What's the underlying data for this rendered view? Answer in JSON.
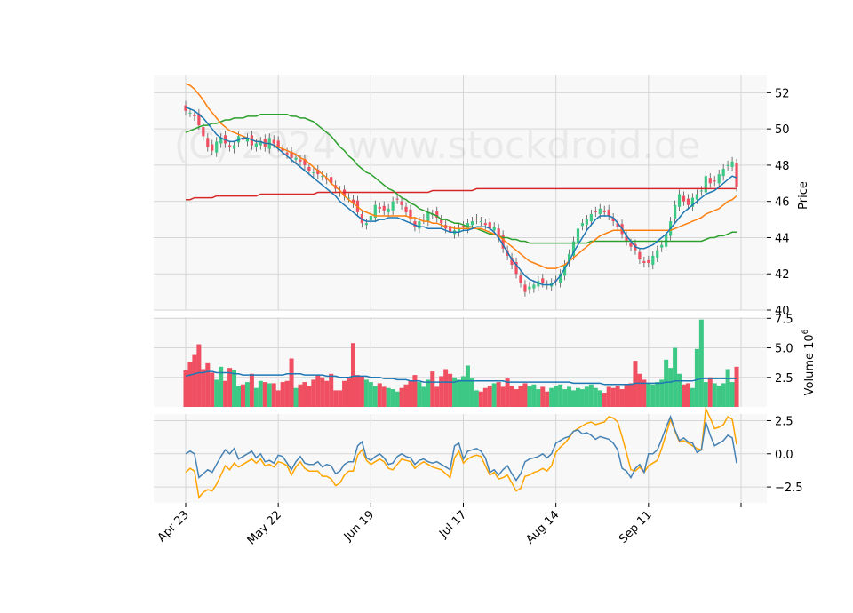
{
  "chart_data": {
    "type": "candlestick",
    "watermark": "(C) 2024 www.stockdroid.de",
    "colors": {
      "up": "#3dc985",
      "down": "#ef4f60",
      "ma_short": "#1f77b4",
      "ma_mid": "#ff7f0e",
      "ma_long": "#2ca02c",
      "ma_200": "#d62728",
      "indicator_1": "#4682b4",
      "indicator_2": "#ffa500",
      "panel_bg": "#f8f8f8",
      "grid": "#d6d6d6"
    },
    "x_ticks": [
      {
        "label": "Apr 23",
        "index": 0
      },
      {
        "label": "May 22",
        "index": 21
      },
      {
        "label": "Jun 19",
        "index": 42
      },
      {
        "label": "Jul 17",
        "index": 63
      },
      {
        "label": "Aug 14",
        "index": 84
      },
      {
        "label": "Sep 11",
        "index": 105
      },
      {
        "label": "",
        "index": 126
      }
    ],
    "price_panel": {
      "ylabel": "Price",
      "ylim": [
        40,
        53
      ],
      "yticks": [
        "40",
        "42",
        "44",
        "46",
        "48",
        "50",
        "52"
      ],
      "grid": true
    },
    "volume_panel": {
      "ylabel": "Volume  10",
      "ylabel_exponent": "6",
      "ylim": [
        0,
        7.6
      ],
      "yticks": [
        "2.5",
        "5.0",
        "7.5"
      ],
      "grid": true
    },
    "indicator_panel": {
      "ylim": [
        -3.7,
        3.0
      ],
      "yticks": [
        "2.5",
        "0.0",
        "−2.5"
      ],
      "grid": true
    },
    "close": [
      51.0,
      50.9,
      50.7,
      50.2,
      49.6,
      49.0,
      48.8,
      49.3,
      49.5,
      49.2,
      49.0,
      49.1,
      49.6,
      49.4,
      49.5,
      49.1,
      49.2,
      49.3,
      49.0,
      49.5,
      49.2,
      49.0,
      48.8,
      48.6,
      48.4,
      48.4,
      48.2,
      48.0,
      47.7,
      47.6,
      47.5,
      47.4,
      47.2,
      47.0,
      46.7,
      46.5,
      46.3,
      46.2,
      45.9,
      45.4,
      44.8,
      44.8,
      45.2,
      45.8,
      45.6,
      45.5,
      45.6,
      46.0,
      46.1,
      45.8,
      45.4,
      45.0,
      44.6,
      44.9,
      45.0,
      45.4,
      45.3,
      45.1,
      44.8,
      44.5,
      44.3,
      44.4,
      44.5,
      44.6,
      44.8,
      44.9,
      45.0,
      44.9,
      44.7,
      44.5,
      44.6,
      44.0,
      43.4,
      43.0,
      42.5,
      42.0,
      41.5,
      41.0,
      41.3,
      41.4,
      41.6,
      41.5,
      41.4,
      41.5,
      41.6,
      42.0,
      42.5,
      43.1,
      43.8,
      44.5,
      44.8,
      45.0,
      45.3,
      45.4,
      45.6,
      45.4,
      45.2,
      44.9,
      44.6,
      44.2,
      43.8,
      43.5,
      43.3,
      42.8,
      42.6,
      42.6,
      43.0,
      43.3,
      43.6,
      44.2,
      44.9,
      45.8,
      46.4,
      46.0,
      45.8,
      46.2,
      46.4,
      46.6,
      47.4,
      47.0,
      47.1,
      47.5,
      47.8,
      48.0,
      48.2,
      46.8
    ],
    "ma_short": [
      51.2,
      51.1,
      51.0,
      50.8,
      50.6,
      50.3,
      50.0,
      49.7,
      49.5,
      49.4,
      49.3,
      49.3,
      49.4,
      49.5,
      49.5,
      49.4,
      49.3,
      49.3,
      49.2,
      49.2,
      49.1,
      48.9,
      48.7,
      48.5,
      48.3,
      48.1,
      47.9,
      47.7,
      47.5,
      47.3,
      47.1,
      46.9,
      46.7,
      46.5,
      46.3,
      46.0,
      45.8,
      45.6,
      45.4,
      45.2,
      45.0,
      44.9,
      44.9,
      44.9,
      45.0,
      45.0,
      45.1,
      45.1,
      45.1,
      45.0,
      44.9,
      44.8,
      44.7,
      44.6,
      44.6,
      44.5,
      44.5,
      44.5,
      44.5,
      44.4,
      44.3,
      44.3,
      44.3,
      44.4,
      44.4,
      44.5,
      44.6,
      44.6,
      44.6,
      44.5,
      44.3,
      44.0,
      43.6,
      43.2,
      42.8,
      42.5,
      42.2,
      41.9,
      41.7,
      41.6,
      41.5,
      41.4,
      41.4,
      41.4,
      41.6,
      41.9,
      42.3,
      42.7,
      43.2,
      43.6,
      44.0,
      44.4,
      44.7,
      45.0,
      45.2,
      45.2,
      45.2,
      45.1,
      44.8,
      44.5,
      44.1,
      43.8,
      43.5,
      43.4,
      43.4,
      43.5,
      43.6,
      43.8,
      44.0,
      44.2,
      44.5,
      44.8,
      45.1,
      45.4,
      45.6,
      45.8,
      46.0,
      46.2,
      46.4,
      46.5,
      46.6,
      46.8,
      47.0,
      47.2,
      47.4,
      47.3
    ],
    "ma_mid": [
      52.5,
      52.4,
      52.2,
      51.9,
      51.6,
      51.2,
      50.9,
      50.6,
      50.3,
      50.1,
      49.9,
      49.8,
      49.7,
      49.6,
      49.5,
      49.4,
      49.3,
      49.3,
      49.2,
      49.2,
      49.1,
      49.0,
      48.9,
      48.8,
      48.7,
      48.6,
      48.4,
      48.3,
      48.1,
      47.9,
      47.7,
      47.5,
      47.3,
      47.0,
      46.8,
      46.6,
      46.3,
      46.1,
      45.9,
      45.7,
      45.5,
      45.4,
      45.3,
      45.2,
      45.2,
      45.2,
      45.2,
      45.2,
      45.2,
      45.2,
      45.2,
      45.1,
      45.1,
      45.0,
      44.9,
      44.9,
      44.8,
      44.8,
      44.7,
      44.6,
      44.6,
      44.5,
      44.5,
      44.5,
      44.5,
      44.5,
      44.5,
      44.5,
      44.4,
      44.3,
      44.2,
      44.1,
      43.9,
      43.7,
      43.5,
      43.3,
      43.1,
      42.9,
      42.7,
      42.6,
      42.5,
      42.4,
      42.3,
      42.3,
      42.3,
      42.4,
      42.5,
      42.7,
      42.9,
      43.1,
      43.3,
      43.5,
      43.7,
      43.9,
      44.1,
      44.2,
      44.3,
      44.4,
      44.4,
      44.4,
      44.4,
      44.4,
      44.4,
      44.4,
      44.4,
      44.4,
      44.4,
      44.4,
      44.4,
      44.4,
      44.4,
      44.5,
      44.6,
      44.7,
      44.8,
      44.9,
      45.0,
      45.1,
      45.3,
      45.4,
      45.5,
      45.6,
      45.8,
      46.0,
      46.1,
      46.3
    ],
    "ma_long": [
      49.8,
      49.9,
      50.0,
      50.1,
      50.2,
      50.2,
      50.3,
      50.3,
      50.4,
      50.5,
      50.5,
      50.6,
      50.6,
      50.6,
      50.7,
      50.7,
      50.7,
      50.8,
      50.8,
      50.8,
      50.8,
      50.8,
      50.8,
      50.8,
      50.7,
      50.7,
      50.6,
      50.6,
      50.5,
      50.4,
      50.2,
      50.0,
      49.8,
      49.6,
      49.3,
      49.0,
      48.8,
      48.5,
      48.3,
      48.0,
      47.8,
      47.6,
      47.5,
      47.3,
      47.1,
      46.9,
      46.7,
      46.6,
      46.4,
      46.2,
      46.1,
      45.9,
      45.8,
      45.6,
      45.5,
      45.4,
      45.3,
      45.2,
      45.0,
      45.0,
      44.9,
      44.8,
      44.8,
      44.7,
      44.6,
      44.6,
      44.5,
      44.4,
      44.3,
      44.2,
      44.2,
      44.1,
      44.0,
      44.0,
      43.9,
      43.9,
      43.8,
      43.8,
      43.7,
      43.7,
      43.7,
      43.7,
      43.7,
      43.7,
      43.7,
      43.7,
      43.7,
      43.7,
      43.7,
      43.7,
      43.7,
      43.7,
      43.8,
      43.8,
      43.8,
      43.8,
      43.8,
      43.8,
      43.8,
      43.8,
      43.8,
      43.8,
      43.8,
      43.8,
      43.8,
      43.8,
      43.8,
      43.8,
      43.8,
      43.8,
      43.8,
      43.8,
      43.8,
      43.8,
      43.8,
      43.8,
      43.8,
      43.8,
      43.9,
      44.0,
      44.0,
      44.1,
      44.1,
      44.2,
      44.3,
      44.3
    ],
    "ma_200": [
      46.1,
      46.1,
      46.2,
      46.2,
      46.2,
      46.2,
      46.2,
      46.3,
      46.3,
      46.3,
      46.3,
      46.3,
      46.3,
      46.3,
      46.3,
      46.3,
      46.3,
      46.4,
      46.4,
      46.4,
      46.4,
      46.4,
      46.4,
      46.4,
      46.4,
      46.4,
      46.4,
      46.4,
      46.4,
      46.4,
      46.5,
      46.5,
      46.5,
      46.5,
      46.5,
      46.5,
      46.5,
      46.5,
      46.5,
      46.5,
      46.5,
      46.5,
      46.5,
      46.5,
      46.5,
      46.5,
      46.5,
      46.5,
      46.5,
      46.5,
      46.5,
      46.5,
      46.5,
      46.5,
      46.5,
      46.5,
      46.6,
      46.6,
      46.6,
      46.6,
      46.6,
      46.6,
      46.6,
      46.6,
      46.6,
      46.6,
      46.7,
      46.7,
      46.7,
      46.7,
      46.7,
      46.7,
      46.7,
      46.7,
      46.7,
      46.7,
      46.7,
      46.7,
      46.7,
      46.7,
      46.7,
      46.7,
      46.7,
      46.7,
      46.7,
      46.7,
      46.7,
      46.7,
      46.7,
      46.7,
      46.7,
      46.7,
      46.7,
      46.7,
      46.7,
      46.7,
      46.7,
      46.7,
      46.7,
      46.7,
      46.7,
      46.7,
      46.7,
      46.7,
      46.7,
      46.7,
      46.7,
      46.7,
      46.7,
      46.7,
      46.7,
      46.7,
      46.7,
      46.7,
      46.7,
      46.7,
      46.7,
      46.7,
      46.7,
      46.7,
      46.7,
      46.7,
      46.7,
      46.7,
      46.7,
      46.7
    ],
    "volume": [
      3.1,
      3.8,
      4.4,
      5.3,
      3.2,
      3.7,
      2.9,
      2.3,
      3.4,
      2.2,
      3.3,
      3.1,
      1.8,
      1.9,
      2.1,
      2.8,
      1.6,
      2.2,
      2.1,
      2.0,
      2.0,
      1.4,
      2.1,
      2.2,
      4.1,
      1.6,
      1.9,
      2.1,
      1.8,
      2.3,
      2.7,
      2.5,
      2.2,
      2.8,
      1.4,
      1.4,
      2.2,
      2.4,
      5.4,
      2.7,
      2.6,
      2.3,
      2.1,
      1.8,
      2.0,
      1.7,
      1.6,
      1.5,
      1.3,
      1.6,
      1.9,
      2.2,
      2.7,
      2.1,
      1.7,
      2.3,
      3.0,
      1.7,
      2.6,
      3.2,
      2.8,
      2.5,
      2.3,
      2.6,
      3.5,
      2.4,
      1.4,
      1.3,
      1.6,
      1.8,
      2.0,
      2.1,
      1.7,
      2.4,
      1.8,
      1.5,
      1.8,
      2.0,
      1.8,
      1.9,
      1.5,
      1.7,
      1.3,
      1.6,
      1.8,
      1.9,
      1.5,
      1.7,
      1.4,
      1.6,
      1.5,
      1.7,
      1.9,
      1.6,
      1.4,
      1.2,
      1.7,
      1.6,
      1.8,
      1.5,
      1.9,
      2.0,
      3.9,
      2.8,
      2.3,
      2.0,
      1.9,
      2.1,
      2.3,
      4.0,
      3.3,
      5.0,
      2.8,
      1.9,
      2.0,
      1.6,
      4.9,
      7.4,
      2.1,
      2.5,
      2.0,
      1.8,
      2.0,
      3.2,
      2.1,
      3.4
    ],
    "volume_ma": [
      2.6,
      2.7,
      2.8,
      2.9,
      2.9,
      3.0,
      3.0,
      2.9,
      2.9,
      2.9,
      2.9,
      2.8,
      2.8,
      2.7,
      2.7,
      2.7,
      2.7,
      2.7,
      2.7,
      2.7,
      2.7,
      2.7,
      2.7,
      2.8,
      2.8,
      2.8,
      2.8,
      2.7,
      2.7,
      2.7,
      2.7,
      2.7,
      2.6,
      2.6,
      2.6,
      2.5,
      2.5,
      2.5,
      2.6,
      2.6,
      2.6,
      2.6,
      2.5,
      2.5,
      2.5,
      2.4,
      2.4,
      2.4,
      2.3,
      2.3,
      2.3,
      2.2,
      2.2,
      2.2,
      2.1,
      2.1,
      2.1,
      2.1,
      2.1,
      2.1,
      2.1,
      2.1,
      2.2,
      2.2,
      2.2,
      2.2,
      2.2,
      2.2,
      2.2,
      2.2,
      2.2,
      2.2,
      2.2,
      2.1,
      2.1,
      2.1,
      2.1,
      2.1,
      2.1,
      2.1,
      2.1,
      2.1,
      2.1,
      2.1,
      2.1,
      2.1,
      2.1,
      2.1,
      2.0,
      2.0,
      2.0,
      2.0,
      2.0,
      2.0,
      2.0,
      1.9,
      1.9,
      1.9,
      1.9,
      1.9,
      1.9,
      1.9,
      2.0,
      2.0,
      2.0,
      2.0,
      2.0,
      2.0,
      2.0,
      2.1,
      2.1,
      2.2,
      2.2,
      2.2,
      2.2,
      2.2,
      2.3,
      2.4,
      2.4,
      2.4,
      2.4,
      2.4,
      2.4,
      2.4,
      2.4,
      2.4
    ],
    "indicator_1": [
      0.0,
      0.2,
      0.0,
      -1.8,
      -1.5,
      -1.2,
      -1.4,
      -0.8,
      -0.2,
      0.3,
      0.0,
      0.4,
      -0.4,
      -0.2,
      0.0,
      0.2,
      -0.3,
      0.0,
      -0.6,
      -0.5,
      -0.7,
      -0.1,
      -0.2,
      -0.7,
      -1.2,
      -0.6,
      -0.2,
      -0.7,
      -0.8,
      -0.8,
      -0.6,
      -1.0,
      -0.8,
      -0.9,
      -1.5,
      -1.3,
      -0.8,
      -0.6,
      -0.6,
      0.6,
      0.9,
      -0.3,
      -0.5,
      -0.2,
      0.0,
      -0.3,
      -0.8,
      -0.7,
      -0.2,
      0.0,
      -0.2,
      -0.3,
      -0.8,
      -0.5,
      -0.4,
      -0.6,
      -0.7,
      -0.6,
      -0.8,
      -1.0,
      -1.2,
      0.6,
      0.8,
      -0.4,
      0.2,
      0.3,
      0.4,
      0.2,
      -0.3,
      -1.4,
      -1.2,
      -1.6,
      -1.2,
      -0.9,
      -1.5,
      -2.0,
      -1.5,
      -0.6,
      -0.4,
      -0.3,
      -0.2,
      0.0,
      -0.3,
      0.0,
      0.8,
      1.0,
      1.2,
      1.3,
      1.7,
      1.8,
      1.5,
      1.6,
      1.4,
      1.1,
      1.3,
      1.2,
      1.1,
      0.8,
      0.3,
      -1.1,
      -1.3,
      -1.8,
      -1.1,
      -0.8,
      -1.4,
      0.0,
      0.0,
      0.3,
      1.1,
      2.0,
      2.8,
      1.8,
      1.0,
      1.2,
      0.9,
      0.8,
      0.1,
      0.3,
      2.4,
      1.4,
      0.6,
      0.8,
      1.0,
      1.4,
      1.2,
      -0.7
    ],
    "indicator_2": [
      -1.4,
      -1.1,
      -1.3,
      -3.3,
      -2.9,
      -2.7,
      -2.8,
      -2.3,
      -1.6,
      -0.9,
      -1.2,
      -0.7,
      -1.0,
      -0.8,
      -0.6,
      -0.4,
      -0.7,
      -0.4,
      -0.9,
      -0.8,
      -1.0,
      -0.6,
      -0.7,
      -0.9,
      -1.6,
      -1.0,
      -0.6,
      -1.1,
      -1.3,
      -1.3,
      -1.3,
      -1.7,
      -1.7,
      -1.9,
      -2.4,
      -2.2,
      -1.6,
      -1.3,
      -1.3,
      -0.1,
      0.3,
      -0.5,
      -0.8,
      -0.6,
      -0.4,
      -0.6,
      -1.1,
      -1.2,
      -0.8,
      -0.4,
      -0.5,
      -0.6,
      -1.1,
      -0.8,
      -0.6,
      -0.8,
      -1.0,
      -1.1,
      -1.2,
      -1.5,
      -1.8,
      -0.3,
      0.2,
      -0.7,
      -0.4,
      -0.2,
      -0.1,
      -0.2,
      -0.9,
      -1.6,
      -1.4,
      -1.9,
      -1.8,
      -1.6,
      -2.2,
      -2.8,
      -2.6,
      -1.7,
      -1.6,
      -1.4,
      -1.3,
      -1.1,
      -1.3,
      -0.9,
      0.1,
      0.5,
      0.8,
      1.2,
      1.7,
      1.9,
      2.1,
      2.3,
      2.4,
      2.2,
      2.3,
      2.4,
      2.8,
      2.7,
      2.4,
      1.3,
      0.1,
      -1.2,
      -1.3,
      -1.0,
      -1.4,
      -0.9,
      -0.7,
      -0.5,
      0.4,
      1.5,
      2.6,
      1.7,
      0.9,
      1.0,
      0.8,
      0.6,
      0.4,
      0.3,
      3.4,
      2.7,
      1.9,
      2.0,
      2.2,
      2.8,
      2.6,
      0.7
    ]
  }
}
